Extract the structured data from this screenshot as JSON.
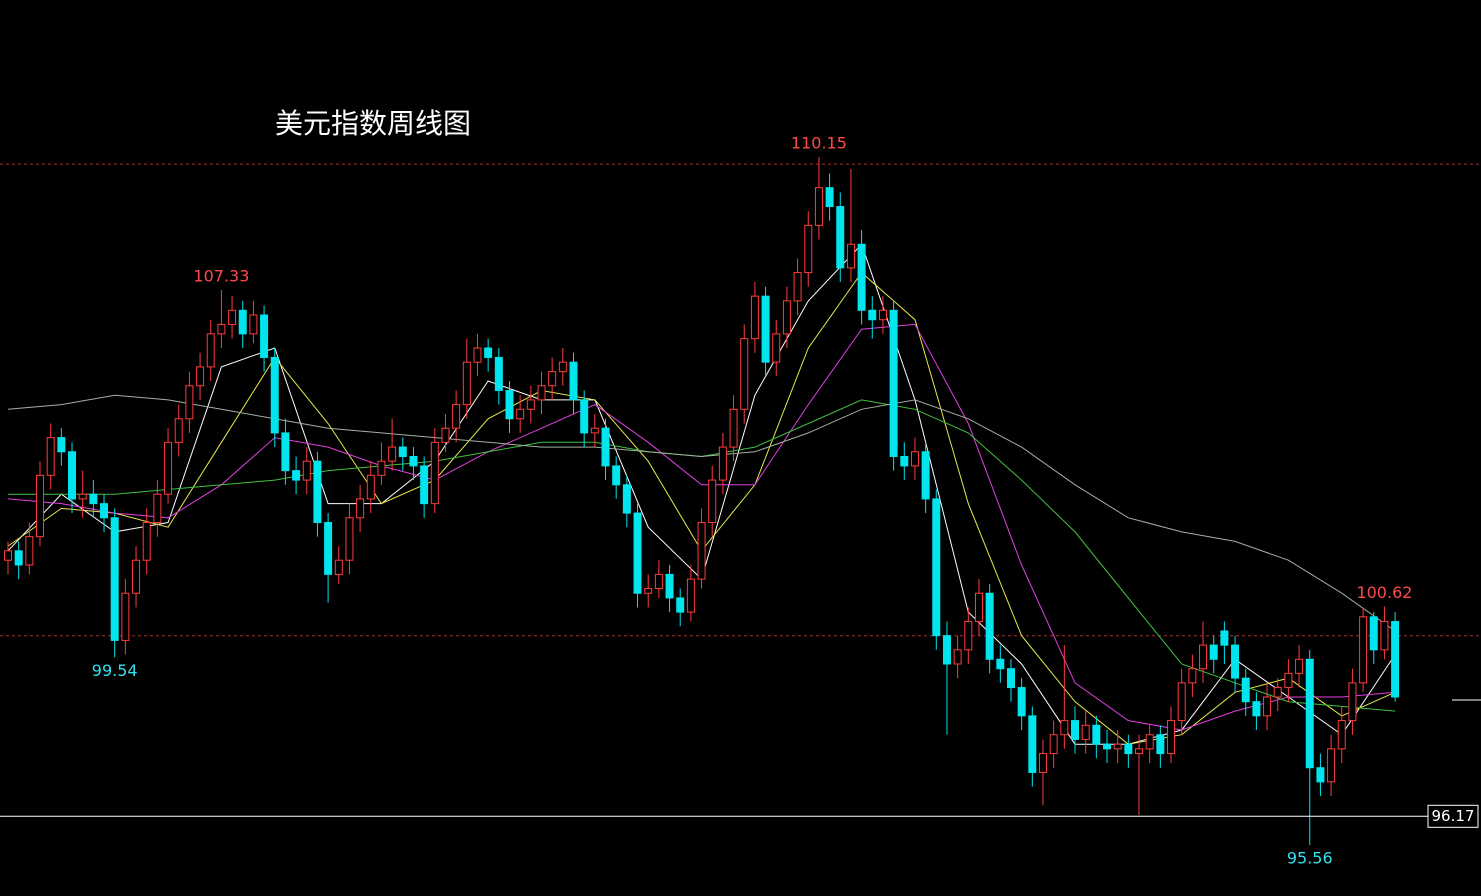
{
  "chart_data": {
    "type": "candlestick",
    "title": "美元指数周线图",
    "ylim": [
      94.48,
      113.48
    ],
    "up_color": "#ff3c3c",
    "down_color": "#00e5ee",
    "levels": [
      110,
      100
    ],
    "level_color": "#a83030",
    "price_line": 96.17,
    "candles": [
      [
        101.6,
        102.0,
        101.3,
        101.8
      ],
      [
        101.8,
        102.0,
        101.2,
        101.5
      ],
      [
        101.5,
        102.4,
        101.3,
        102.1
      ],
      [
        102.1,
        103.7,
        101.9,
        103.4
      ],
      [
        103.4,
        104.5,
        103.1,
        104.2
      ],
      [
        104.2,
        104.4,
        103.6,
        103.9
      ],
      [
        103.9,
        104.1,
        102.6,
        102.9
      ],
      [
        102.9,
        103.5,
        102.5,
        103.0
      ],
      [
        103.0,
        103.3,
        102.5,
        102.8
      ],
      [
        102.8,
        103.0,
        102.2,
        102.5
      ],
      [
        102.5,
        102.7,
        99.54,
        99.9
      ],
      [
        99.9,
        101.2,
        99.6,
        100.9
      ],
      [
        100.9,
        101.9,
        100.6,
        101.6
      ],
      [
        101.6,
        102.7,
        101.3,
        102.4
      ],
      [
        102.4,
        103.3,
        102.1,
        103.0
      ],
      [
        103.0,
        104.4,
        102.8,
        104.1
      ],
      [
        104.1,
        104.9,
        103.8,
        104.6
      ],
      [
        104.6,
        105.6,
        104.3,
        105.3
      ],
      [
        105.3,
        106.0,
        105.0,
        105.7
      ],
      [
        105.7,
        106.7,
        105.4,
        106.4
      ],
      [
        106.4,
        107.33,
        106.1,
        106.6
      ],
      [
        106.6,
        107.2,
        106.3,
        106.9
      ],
      [
        106.9,
        107.1,
        106.1,
        106.4
      ],
      [
        106.4,
        107.1,
        106.2,
        106.8
      ],
      [
        106.8,
        107.0,
        105.6,
        105.9
      ],
      [
        105.9,
        106.1,
        104.0,
        104.3
      ],
      [
        104.3,
        104.6,
        103.2,
        103.5
      ],
      [
        103.5,
        103.8,
        103.0,
        103.3
      ],
      [
        103.3,
        104.0,
        103.0,
        103.7
      ],
      [
        103.7,
        103.9,
        102.1,
        102.4
      ],
      [
        102.4,
        102.6,
        100.7,
        101.3
      ],
      [
        101.3,
        101.9,
        101.1,
        101.6
      ],
      [
        101.6,
        102.8,
        101.3,
        102.5
      ],
      [
        102.5,
        103.2,
        102.2,
        102.9
      ],
      [
        102.9,
        103.7,
        102.6,
        103.4
      ],
      [
        103.4,
        104.1,
        103.2,
        103.7
      ],
      [
        103.7,
        104.6,
        103.5,
        104.0
      ],
      [
        104.0,
        104.2,
        103.5,
        103.8
      ],
      [
        103.8,
        104.0,
        103.3,
        103.6
      ],
      [
        103.6,
        103.8,
        102.5,
        102.8
      ],
      [
        102.8,
        104.4,
        102.6,
        104.1
      ],
      [
        104.1,
        104.7,
        103.9,
        104.4
      ],
      [
        104.4,
        105.2,
        104.1,
        104.9
      ],
      [
        104.9,
        106.3,
        104.6,
        105.8
      ],
      [
        105.8,
        106.4,
        105.5,
        106.1
      ],
      [
        106.1,
        106.3,
        105.6,
        105.9
      ],
      [
        105.9,
        106.1,
        104.9,
        105.2
      ],
      [
        105.2,
        105.4,
        104.3,
        104.6
      ],
      [
        104.6,
        105.1,
        104.3,
        104.8
      ],
      [
        104.8,
        105.3,
        104.5,
        105.0
      ],
      [
        105.0,
        105.6,
        104.7,
        105.3
      ],
      [
        105.3,
        105.9,
        105.0,
        105.6
      ],
      [
        105.6,
        106.1,
        105.3,
        105.8
      ],
      [
        105.8,
        106.0,
        104.7,
        105.0
      ],
      [
        105.0,
        105.2,
        104.0,
        104.3
      ],
      [
        104.3,
        104.7,
        104.0,
        104.4
      ],
      [
        104.4,
        104.6,
        103.3,
        103.6
      ],
      [
        103.6,
        103.8,
        102.9,
        103.2
      ],
      [
        103.2,
        103.4,
        102.3,
        102.6
      ],
      [
        102.6,
        102.8,
        100.6,
        100.9
      ],
      [
        100.9,
        101.3,
        100.6,
        101.0
      ],
      [
        101.0,
        101.6,
        100.8,
        101.3
      ],
      [
        101.3,
        101.5,
        100.5,
        100.8
      ],
      [
        100.8,
        101.0,
        100.2,
        100.5
      ],
      [
        100.5,
        101.5,
        100.3,
        101.2
      ],
      [
        101.2,
        102.7,
        101.0,
        102.4
      ],
      [
        102.4,
        103.6,
        102.1,
        103.3
      ],
      [
        103.3,
        104.3,
        103.0,
        104.0
      ],
      [
        104.0,
        105.1,
        103.7,
        104.8
      ],
      [
        104.8,
        106.6,
        104.5,
        106.3
      ],
      [
        106.3,
        107.5,
        106.0,
        107.2
      ],
      [
        107.2,
        107.4,
        105.5,
        105.8
      ],
      [
        105.8,
        106.7,
        105.5,
        106.4
      ],
      [
        106.4,
        107.4,
        106.1,
        107.1
      ],
      [
        107.1,
        108.0,
        106.8,
        107.7
      ],
      [
        107.7,
        109.0,
        107.4,
        108.7
      ],
      [
        108.7,
        110.15,
        108.4,
        109.5
      ],
      [
        109.5,
        109.8,
        108.8,
        109.1
      ],
      [
        109.1,
        109.4,
        107.5,
        107.8
      ],
      [
        107.8,
        109.9,
        107.5,
        108.3
      ],
      [
        108.3,
        108.6,
        106.6,
        106.9
      ],
      [
        106.9,
        107.2,
        106.3,
        106.7
      ],
      [
        106.7,
        107.2,
        106.4,
        106.9
      ],
      [
        106.9,
        107.1,
        103.5,
        103.8
      ],
      [
        103.8,
        104.1,
        103.3,
        103.6
      ],
      [
        103.6,
        104.2,
        103.3,
        103.9
      ],
      [
        103.9,
        104.1,
        102.6,
        102.9
      ],
      [
        102.9,
        103.1,
        99.7,
        100.0
      ],
      [
        100.0,
        100.3,
        97.9,
        99.4
      ],
      [
        99.4,
        100.0,
        99.1,
        99.7
      ],
      [
        99.7,
        100.6,
        99.4,
        100.3
      ],
      [
        100.3,
        101.2,
        100.0,
        100.9
      ],
      [
        100.9,
        101.1,
        99.2,
        99.5
      ],
      [
        99.5,
        99.8,
        99.0,
        99.3
      ],
      [
        99.3,
        99.5,
        98.6,
        98.9
      ],
      [
        98.9,
        99.1,
        98.0,
        98.3
      ],
      [
        98.3,
        98.5,
        96.8,
        97.1
      ],
      [
        97.1,
        97.8,
        96.4,
        97.5
      ],
      [
        97.5,
        98.2,
        97.2,
        97.9
      ],
      [
        97.9,
        99.8,
        97.6,
        98.2
      ],
      [
        98.2,
        98.5,
        97.5,
        97.8
      ],
      [
        97.8,
        98.4,
        97.5,
        98.1
      ],
      [
        98.1,
        98.3,
        97.4,
        97.7
      ],
      [
        97.7,
        98.0,
        97.3,
        97.6
      ],
      [
        97.6,
        98.0,
        97.3,
        97.7
      ],
      [
        97.7,
        97.9,
        97.2,
        97.5
      ],
      [
        97.5,
        97.9,
        96.2,
        97.6
      ],
      [
        97.6,
        98.1,
        97.3,
        97.9
      ],
      [
        97.9,
        98.1,
        97.2,
        97.5
      ],
      [
        97.5,
        98.5,
        97.3,
        98.2
      ],
      [
        98.2,
        99.3,
        97.9,
        99.0
      ],
      [
        99.0,
        99.6,
        98.7,
        99.3
      ],
      [
        99.3,
        100.3,
        99.0,
        99.8
      ],
      [
        99.8,
        100.0,
        99.2,
        99.5
      ],
      [
        100.1,
        100.3,
        99.4,
        99.8
      ],
      [
        99.8,
        100.0,
        98.8,
        99.1
      ],
      [
        99.1,
        99.3,
        98.3,
        98.6
      ],
      [
        98.6,
        98.8,
        98.0,
        98.3
      ],
      [
        98.3,
        99.0,
        98.0,
        98.7
      ],
      [
        98.7,
        99.1,
        98.4,
        98.9
      ],
      [
        98.9,
        99.5,
        98.6,
        99.2
      ],
      [
        99.2,
        99.8,
        98.9,
        99.5
      ],
      [
        99.5,
        99.7,
        95.56,
        97.2
      ],
      [
        97.2,
        97.5,
        96.6,
        96.9
      ],
      [
        96.9,
        97.9,
        96.6,
        97.6
      ],
      [
        97.6,
        98.5,
        97.3,
        98.2
      ],
      [
        98.2,
        99.3,
        97.9,
        99.0
      ],
      [
        99.0,
        100.6,
        98.8,
        100.4
      ],
      [
        100.4,
        100.5,
        99.4,
        99.7
      ],
      [
        99.7,
        100.62,
        99.5,
        100.3
      ],
      [
        100.3,
        100.5,
        98.6,
        98.7
      ]
    ],
    "ma_x": [
      0,
      5,
      10,
      15,
      20,
      25,
      30,
      35,
      40,
      45,
      50,
      55,
      60,
      65,
      70,
      75,
      80,
      85,
      90,
      95,
      100,
      105,
      110,
      115,
      120,
      125,
      130
    ],
    "ma_lines": [
      {
        "color": "#ffffff",
        "values": [
          101.8,
          103.0,
          102.2,
          102.4,
          105.7,
          106.1,
          102.8,
          102.8,
          103.7,
          105.4,
          105.0,
          105.0,
          102.3,
          101.2,
          105.1,
          107.1,
          108.3,
          105.0,
          100.5,
          99.4,
          97.7,
          97.7,
          98.0,
          99.5,
          98.7,
          97.9,
          99.6
        ]
      },
      {
        "color": "#e8e84a",
        "values": [
          101.9,
          102.7,
          102.6,
          102.3,
          104.1,
          105.9,
          104.5,
          102.8,
          103.3,
          104.6,
          105.2,
          105.0,
          103.7,
          101.8,
          103.2,
          106.1,
          107.7,
          106.7,
          102.8,
          100.0,
          98.6,
          97.7,
          97.9,
          98.8,
          99.1,
          98.3,
          98.8
        ]
      },
      {
        "color": "#e040e0",
        "values": [
          102.9,
          102.8,
          102.6,
          102.5,
          103.2,
          104.2,
          104.0,
          103.6,
          103.3,
          103.9,
          104.4,
          104.9,
          104.1,
          103.2,
          103.2,
          104.9,
          106.5,
          106.6,
          104.5,
          101.5,
          99.0,
          98.2,
          98.0,
          98.4,
          98.7,
          98.7,
          98.8
        ]
      },
      {
        "color": "#40c040",
        "values": [
          103.0,
          103.0,
          103.0,
          103.1,
          103.2,
          103.3,
          103.5,
          103.6,
          103.7,
          103.9,
          104.1,
          104.1,
          103.9,
          103.8,
          104.0,
          104.5,
          105.0,
          104.8,
          104.3,
          103.3,
          102.2,
          100.8,
          99.4,
          99.0,
          98.6,
          98.5,
          98.4
        ]
      },
      {
        "color": "#a0b0a0",
        "values": [
          104.8,
          104.9,
          105.1,
          105.0,
          104.8,
          104.6,
          104.4,
          104.3,
          104.2,
          104.1,
          104.0,
          104.0,
          103.9,
          103.8,
          103.9,
          104.3,
          104.8,
          105.0,
          104.6,
          104.0,
          103.2,
          102.5,
          102.2,
          102.0,
          101.6,
          100.9,
          100.1
        ]
      }
    ]
  }
}
